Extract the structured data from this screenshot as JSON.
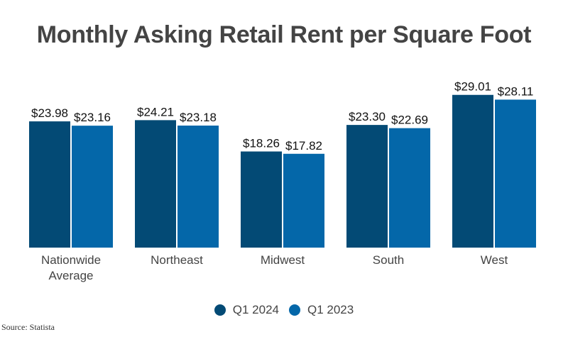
{
  "chart_data": {
    "type": "bar",
    "title": "Monthly Asking Retail Rent per Square Foot",
    "categories": [
      "Nationwide Average",
      "Northeast",
      "Midwest",
      "South",
      "West"
    ],
    "series": [
      {
        "name": "Q1 2024",
        "color": "#034a75",
        "values": [
          23.98,
          24.21,
          18.26,
          23.3,
          29.01
        ],
        "labels": [
          "$23.98",
          "$24.21",
          "$18.26",
          "$23.30",
          "$29.01"
        ]
      },
      {
        "name": "Q1 2023",
        "color": "#0467a9",
        "values": [
          23.16,
          23.18,
          17.82,
          22.69,
          28.11
        ],
        "labels": [
          "$23.16",
          "$23.18",
          "$17.82",
          "$22.69",
          "$28.11"
        ]
      }
    ],
    "xlabel": "",
    "ylabel": "",
    "grid": false,
    "legend": "bottom",
    "source": "Source: Statista"
  }
}
